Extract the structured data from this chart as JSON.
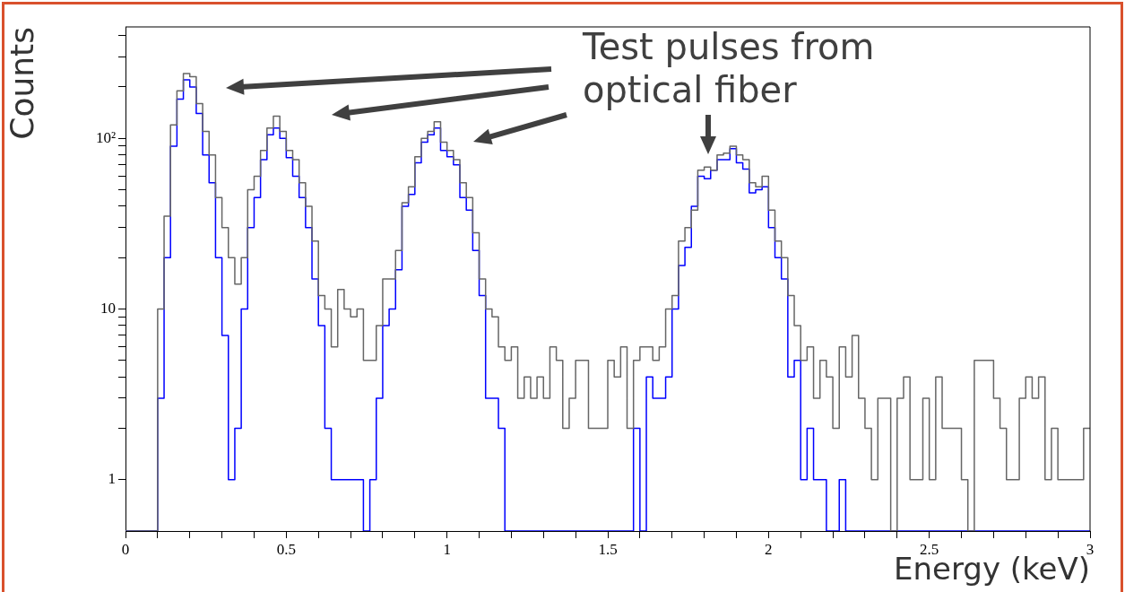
{
  "chart_data": {
    "type": "histogram",
    "xlabel": "Energy (keV)",
    "ylabel": "Counts",
    "annotations": [
      "Test pulses from optical fiber"
    ],
    "bins": [
      0,
      0.02,
      0.04,
      0.06,
      0.08,
      0.1,
      0.12,
      0.14,
      0.16,
      0.18,
      0.2,
      0.22,
      0.24,
      0.26,
      0.28,
      0.3,
      0.32,
      0.34,
      0.36,
      0.38,
      0.4,
      0.42,
      0.44,
      0.46,
      0.48,
      0.5,
      0.52,
      0.54,
      0.56,
      0.58,
      0.6,
      0.62,
      0.64,
      0.66,
      0.68,
      0.7,
      0.72,
      0.74,
      0.76,
      0.78,
      0.8,
      0.82,
      0.84,
      0.86,
      0.88,
      0.9,
      0.92,
      0.94,
      0.96,
      0.98,
      1,
      1.02,
      1.04,
      1.06,
      1.08,
      1.1,
      1.12,
      1.14,
      1.16,
      1.18,
      1.2,
      1.22,
      1.24,
      1.26,
      1.28,
      1.3,
      1.32,
      1.34,
      1.36,
      1.38,
      1.4,
      1.42,
      1.44,
      1.46,
      1.48,
      1.5,
      1.52,
      1.54,
      1.56,
      1.58,
      1.6,
      1.62,
      1.64,
      1.66,
      1.68,
      1.7,
      1.72,
      1.74,
      1.76,
      1.78,
      1.8,
      1.82,
      1.84,
      1.86,
      1.88,
      1.9,
      1.92,
      1.94,
      1.96,
      1.98,
      2,
      2.02,
      2.04,
      2.06,
      2.08,
      2.1,
      2.12,
      2.14,
      2.16,
      2.18,
      2.2,
      2.22,
      2.24,
      2.26,
      2.28,
      2.3,
      2.32,
      2.34,
      2.36,
      2.38,
      2.4,
      2.42,
      2.44,
      2.46,
      2.48,
      2.5,
      2.52,
      2.54,
      2.56,
      2.58,
      2.6,
      2.62,
      2.64,
      2.66,
      2.68,
      2.7,
      2.72,
      2.74,
      2.76,
      2.78,
      2.8,
      2.82,
      2.84,
      2.86,
      2.88,
      2.9,
      2.92,
      2.94,
      2.96,
      2.98,
      3
    ],
    "series": [
      {
        "color": "#666666",
        "values": [
          null,
          null,
          null,
          null,
          null,
          10,
          35,
          120,
          190,
          240,
          230,
          160,
          110,
          80,
          45,
          30,
          20,
          14,
          20,
          50,
          60,
          85,
          115,
          135,
          110,
          85,
          75,
          55,
          40,
          25,
          12,
          10,
          6,
          13,
          10,
          9,
          10,
          5,
          5,
          8,
          15,
          15,
          22,
          42,
          52,
          78,
          100,
          110,
          125,
          95,
          85,
          75,
          55,
          45,
          28,
          15,
          10,
          9,
          6,
          5,
          6,
          3,
          4,
          3,
          4,
          3,
          6,
          5,
          2,
          3,
          5,
          5,
          2,
          2,
          2,
          5,
          4,
          6,
          2,
          5,
          6,
          6,
          5,
          6,
          10,
          12,
          25,
          30,
          38,
          65,
          68,
          65,
          80,
          82,
          90,
          80,
          75,
          55,
          52,
          60,
          38,
          25,
          20,
          12,
          8,
          5,
          6,
          3,
          5,
          4,
          2,
          6,
          4,
          7,
          3,
          2,
          1,
          3,
          3,
          null,
          3,
          4,
          1,
          1,
          3,
          1,
          4,
          2,
          2,
          2,
          1,
          null,
          5,
          5,
          5,
          3,
          2,
          1,
          1,
          3,
          4,
          3,
          4,
          1,
          2,
          1,
          1,
          1,
          1,
          2
        ]
      },
      {
        "color": "#0000ff",
        "values": [
          null,
          null,
          null,
          null,
          null,
          3,
          20,
          90,
          170,
          220,
          200,
          140,
          80,
          55,
          20,
          7,
          1,
          2,
          10,
          30,
          45,
          75,
          105,
          115,
          100,
          77,
          60,
          45,
          30,
          15,
          8,
          2,
          1,
          1,
          1,
          1,
          1,
          null,
          1,
          3,
          8,
          10,
          17,
          40,
          47,
          72,
          95,
          105,
          115,
          85,
          78,
          70,
          45,
          38,
          22,
          12,
          3,
          3,
          2,
          null,
          null,
          null,
          null,
          null,
          null,
          null,
          null,
          null,
          null,
          null,
          null,
          null,
          null,
          null,
          null,
          null,
          null,
          null,
          null,
          2,
          null,
          4,
          3,
          3,
          4,
          10,
          18,
          23,
          40,
          60,
          58,
          65,
          75,
          75,
          87,
          72,
          66,
          48,
          50,
          52,
          30,
          20,
          15,
          4,
          5,
          1,
          2,
          1,
          1,
          null,
          null,
          1,
          null,
          null,
          null,
          null,
          null,
          null,
          null,
          null,
          null,
          null,
          null,
          null,
          null,
          null,
          null,
          null,
          null,
          null,
          null,
          null,
          null,
          null,
          null,
          null,
          null,
          null,
          null,
          null,
          null,
          null,
          null,
          null,
          null,
          null,
          null,
          null,
          null,
          null
        ]
      }
    ],
    "log": true,
    "xlim": [
      0,
      3
    ],
    "ylim": [
      0.5,
      450
    ],
    "xticks": [
      0,
      {
        "value": 0.1,
        "label": null
      },
      {
        "value": 0.2,
        "label": null
      },
      {
        "value": 0.3,
        "label": null
      },
      {
        "value": 0.4,
        "label": null
      },
      0.5,
      {
        "value": 0.6,
        "label": null
      },
      {
        "value": 0.7,
        "label": null
      },
      {
        "value": 0.8,
        "label": null
      },
      {
        "value": 0.9,
        "label": null
      },
      1,
      {
        "value": 1.1,
        "label": null
      },
      {
        "value": 1.2,
        "label": null
      },
      {
        "value": 1.3,
        "label": null
      },
      {
        "value": 1.4,
        "label": null
      },
      1.5,
      {
        "value": 1.6,
        "label": null
      },
      {
        "value": 1.7,
        "label": null
      },
      {
        "value": 1.8,
        "label": null
      },
      {
        "value": 1.9,
        "label": null
      },
      2,
      {
        "value": 2.1,
        "label": null
      },
      {
        "value": 2.2,
        "label": null
      },
      {
        "value": 2.3,
        "label": null
      },
      {
        "value": 2.4,
        "label": null
      },
      2.5,
      {
        "value": 2.6,
        "label": null
      },
      {
        "value": 2.7,
        "label": null
      },
      {
        "value": 2.8,
        "label": null
      },
      {
        "value": 2.9,
        "label": null
      },
      3
    ],
    "yticks": [
      1,
      {
        "value": 2,
        "label": null
      },
      {
        "value": 3,
        "label": null
      },
      {
        "value": 4,
        "label": null
      },
      {
        "value": 5,
        "label": null
      },
      {
        "value": 6,
        "label": null
      },
      {
        "value": 7,
        "label": null
      },
      {
        "value": 8,
        "label": null
      },
      {
        "value": 9,
        "label": null
      },
      10,
      {
        "value": 20,
        "label": null
      },
      {
        "value": 30,
        "label": null
      },
      {
        "value": 40,
        "label": null
      },
      {
        "value": 50,
        "label": null
      },
      {
        "value": 60,
        "label": null
      },
      {
        "value": 70,
        "label": null
      },
      {
        "value": 80,
        "label": null
      },
      {
        "value": 90,
        "label": null
      },
      {
        "value": 100,
        "label": "10²"
      },
      {
        "value": 200,
        "label": null
      },
      {
        "value": 300,
        "label": null
      },
      {
        "value": 400,
        "label": null
      }
    ],
    "grid": false,
    "legend": false
  }
}
